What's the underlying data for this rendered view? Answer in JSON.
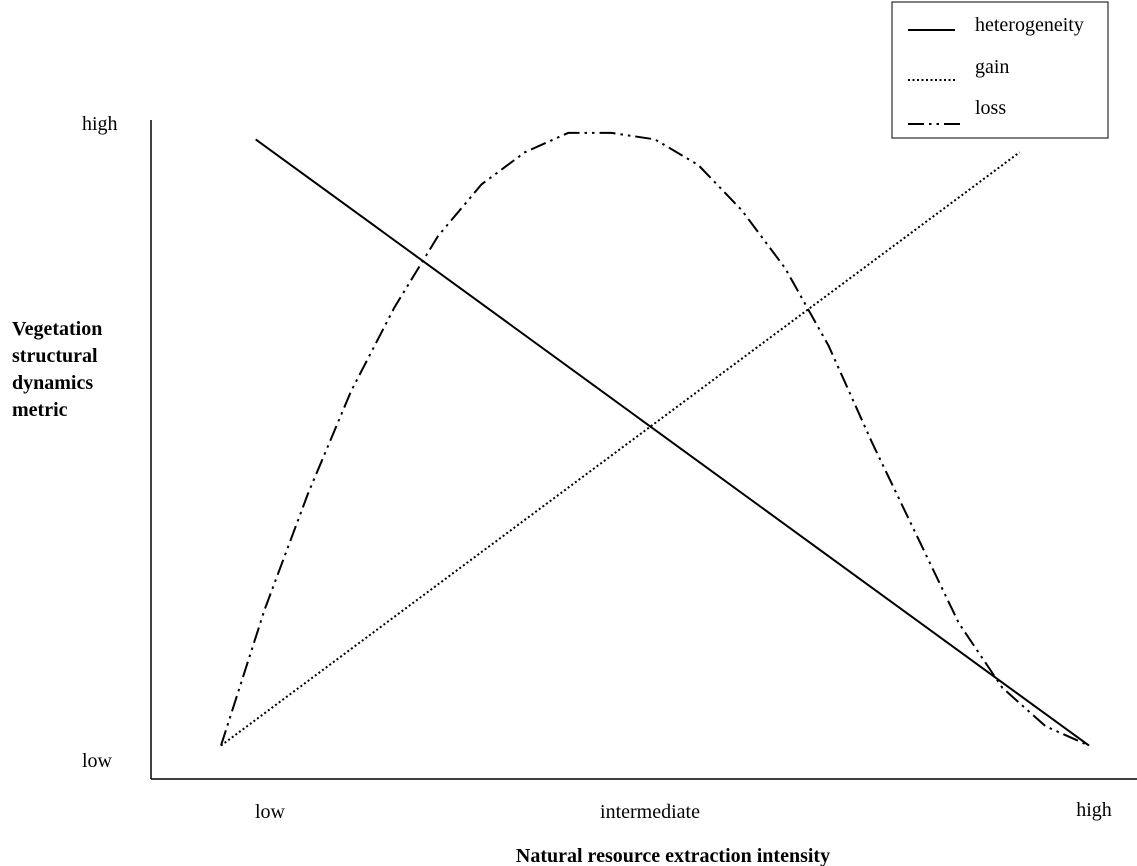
{
  "chart_data": {
    "type": "line",
    "title": "",
    "xlabel": "Natural resource extraction intensity",
    "ylabel_lines": [
      "Vegetation",
      "structural",
      "dynamics",
      "metric"
    ],
    "x_ticks": [
      "low",
      "intermediate",
      "high"
    ],
    "y_ticks": [
      "low",
      "high"
    ],
    "xlim": [
      0,
      1
    ],
    "ylim": [
      0,
      1
    ],
    "grid": false,
    "legend_position": "top-right",
    "series": [
      {
        "name": "heterogeneity",
        "style": "solid",
        "color": "#000000",
        "points": [
          [
            0.04,
            0.97
          ],
          [
            1.0,
            0.03
          ]
        ]
      },
      {
        "name": "gain",
        "style": "dotted",
        "color": "#000000",
        "points": [
          [
            0.0,
            0.03
          ],
          [
            0.92,
            0.95
          ]
        ]
      },
      {
        "name": "loss",
        "style": "dash-dot-dot",
        "color": "#000000",
        "points": [
          [
            0.0,
            0.03
          ],
          [
            0.05,
            0.24
          ],
          [
            0.1,
            0.42
          ],
          [
            0.15,
            0.58
          ],
          [
            0.2,
            0.71
          ],
          [
            0.25,
            0.82
          ],
          [
            0.3,
            0.9
          ],
          [
            0.35,
            0.95
          ],
          [
            0.4,
            0.98
          ],
          [
            0.45,
            0.98
          ],
          [
            0.5,
            0.97
          ],
          [
            0.55,
            0.93
          ],
          [
            0.6,
            0.86
          ],
          [
            0.65,
            0.77
          ],
          [
            0.7,
            0.65
          ],
          [
            0.75,
            0.5
          ],
          [
            0.8,
            0.36
          ],
          [
            0.85,
            0.22
          ],
          [
            0.9,
            0.12
          ],
          [
            0.95,
            0.06
          ],
          [
            1.0,
            0.03
          ]
        ]
      }
    ]
  }
}
